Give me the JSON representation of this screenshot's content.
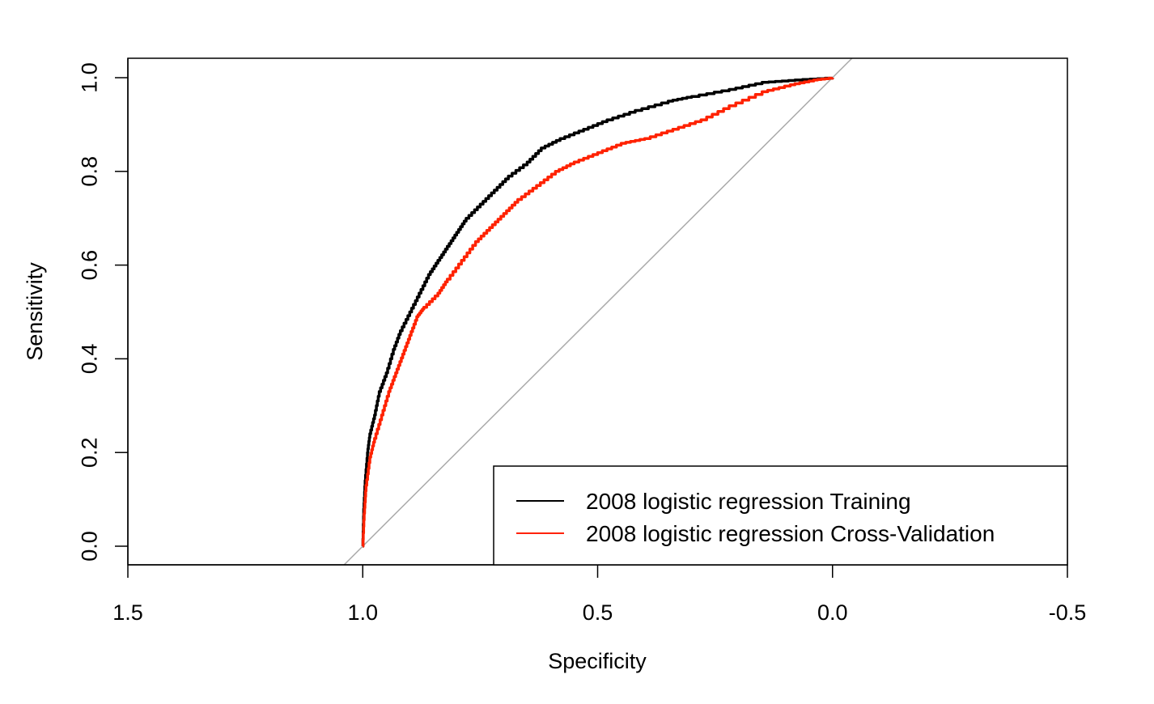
{
  "chart_data": {
    "type": "line",
    "xlabel": "Specificity",
    "ylabel": "Sensitivity",
    "xlim": [
      1.5,
      -0.5
    ],
    "ylim": [
      -0.04,
      1.04
    ],
    "x_reversed": true,
    "x_ticks": [
      1.5,
      1.0,
      0.5,
      0.0,
      -0.5
    ],
    "x_tick_labels": [
      "1.5",
      "1.0",
      "0.5",
      "0.0",
      "-0.5"
    ],
    "y_ticks": [
      0.0,
      0.2,
      0.4,
      0.6,
      0.8,
      1.0
    ],
    "y_tick_labels": [
      "0.0",
      "0.2",
      "0.4",
      "0.6",
      "0.8",
      "1.0"
    ],
    "grid": false,
    "legend_position": "bottom-right",
    "reference_line": {
      "description": "diagonal",
      "color": "#aaaaaa",
      "points": [
        [
          1.0,
          0.0
        ],
        [
          0.0,
          1.0
        ]
      ]
    },
    "series": [
      {
        "name": "2008 logistic regression Training",
        "color": "#000000",
        "points": [
          [
            1.0,
            0.0
          ],
          [
            0.998,
            0.08
          ],
          [
            0.995,
            0.14
          ],
          [
            0.99,
            0.2
          ],
          [
            0.985,
            0.24
          ],
          [
            0.975,
            0.28
          ],
          [
            0.965,
            0.33
          ],
          [
            0.95,
            0.37
          ],
          [
            0.935,
            0.42
          ],
          [
            0.92,
            0.46
          ],
          [
            0.9,
            0.5
          ],
          [
            0.88,
            0.54
          ],
          [
            0.86,
            0.58
          ],
          [
            0.84,
            0.61
          ],
          [
            0.82,
            0.64
          ],
          [
            0.8,
            0.67
          ],
          [
            0.78,
            0.7
          ],
          [
            0.75,
            0.73
          ],
          [
            0.72,
            0.76
          ],
          [
            0.69,
            0.79
          ],
          [
            0.65,
            0.82
          ],
          [
            0.62,
            0.85
          ],
          [
            0.58,
            0.87
          ],
          [
            0.53,
            0.89
          ],
          [
            0.48,
            0.91
          ],
          [
            0.42,
            0.93
          ],
          [
            0.35,
            0.95
          ],
          [
            0.3,
            0.96
          ],
          [
            0.22,
            0.975
          ],
          [
            0.15,
            0.99
          ],
          [
            0.08,
            0.995
          ],
          [
            0.0,
            1.0
          ]
        ]
      },
      {
        "name": "2008 logistic regression Cross-Validation",
        "color": "#ff2200",
        "points": [
          [
            1.0,
            0.0
          ],
          [
            0.997,
            0.07
          ],
          [
            0.993,
            0.13
          ],
          [
            0.985,
            0.19
          ],
          [
            0.975,
            0.23
          ],
          [
            0.96,
            0.28
          ],
          [
            0.945,
            0.33
          ],
          [
            0.93,
            0.37
          ],
          [
            0.915,
            0.41
          ],
          [
            0.9,
            0.45
          ],
          [
            0.885,
            0.49
          ],
          [
            0.87,
            0.51
          ],
          [
            0.84,
            0.54
          ],
          [
            0.82,
            0.57
          ],
          [
            0.79,
            0.61
          ],
          [
            0.76,
            0.65
          ],
          [
            0.73,
            0.68
          ],
          [
            0.7,
            0.71
          ],
          [
            0.67,
            0.74
          ],
          [
            0.63,
            0.77
          ],
          [
            0.59,
            0.8
          ],
          [
            0.55,
            0.82
          ],
          [
            0.5,
            0.84
          ],
          [
            0.45,
            0.86
          ],
          [
            0.4,
            0.87
          ],
          [
            0.34,
            0.89
          ],
          [
            0.28,
            0.91
          ],
          [
            0.22,
            0.94
          ],
          [
            0.15,
            0.97
          ],
          [
            0.09,
            0.985
          ],
          [
            0.04,
            0.995
          ],
          [
            0.0,
            1.0
          ]
        ]
      }
    ]
  }
}
